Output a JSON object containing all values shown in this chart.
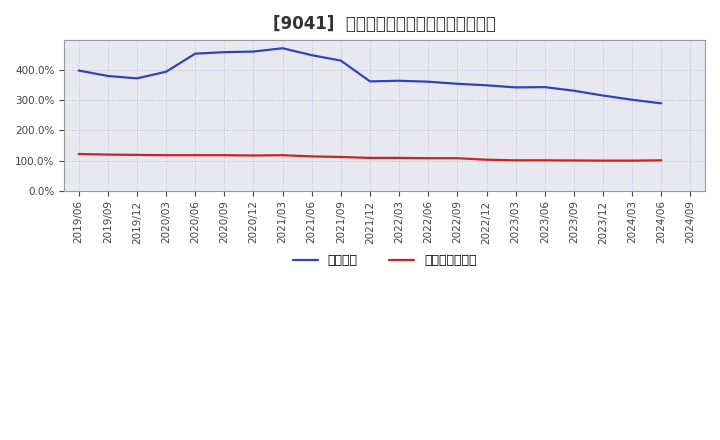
{
  "title": "[9041]  固定比率、固定長期適合率の推移",
  "x_labels": [
    "2019/06",
    "2019/09",
    "2019/12",
    "2020/03",
    "2020/06",
    "2020/09",
    "2020/12",
    "2021/03",
    "2021/06",
    "2021/09",
    "2021/12",
    "2022/03",
    "2022/06",
    "2022/09",
    "2022/12",
    "2023/03",
    "2023/06",
    "2023/09",
    "2023/12",
    "2024/03",
    "2024/06",
    "2024/09"
  ],
  "fixed_ratio": [
    399.0,
    381.0,
    373.0,
    395.0,
    455.0,
    460.0,
    462.0,
    473.0,
    450.0,
    432.0,
    363.0,
    365.0,
    362.0,
    355.0,
    350.0,
    343.0,
    344.0,
    332.0,
    316.0,
    302.0,
    290.0,
    null
  ],
  "fixed_long_ratio": [
    122.0,
    120.0,
    119.0,
    118.0,
    118.0,
    118.0,
    117.0,
    118.0,
    114.0,
    112.0,
    109.0,
    109.0,
    108.0,
    108.0,
    103.0,
    101.0,
    101.0,
    100.5,
    100.0,
    100.0,
    101.0,
    null
  ],
  "blue_color": "#3344bb",
  "red_color": "#cc2222",
  "bg_color": "#ffffff",
  "plot_bg_color": "#e8e8f0",
  "grid_color": "#aaaacc",
  "spine_color": "#999999",
  "ylim": [
    0,
    500
  ],
  "yticks": [
    0,
    100,
    200,
    300,
    400
  ],
  "legend_labels": [
    "固定比率",
    "固定長期適合率"
  ],
  "title_fontsize": 12,
  "tick_fontsize": 7.5,
  "legend_fontsize": 9,
  "line_width": 1.6
}
